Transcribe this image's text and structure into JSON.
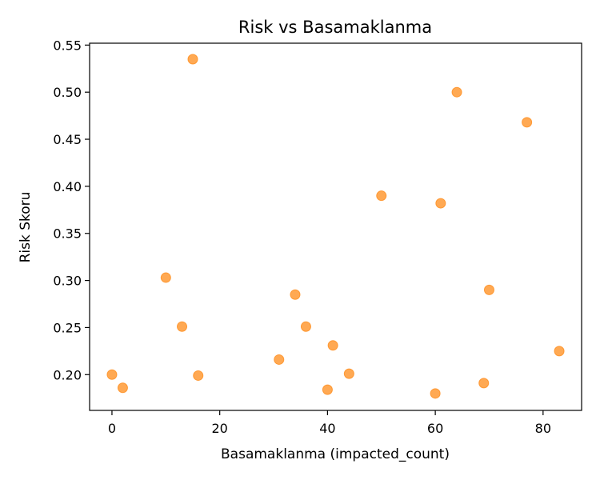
{
  "chart_data": {
    "type": "scatter",
    "title": "Risk vs Basamaklanma",
    "xlabel": "Basamaklanma (impacted_count)",
    "ylabel": "Risk Skoru",
    "xlim": [
      -4.15,
      87.15
    ],
    "ylim": [
      0.162,
      0.552
    ],
    "xticks": [
      0,
      20,
      40,
      60,
      80
    ],
    "yticks": [
      0.2,
      0.25,
      0.3,
      0.35,
      0.4,
      0.45,
      0.5,
      0.55
    ],
    "grid": false,
    "marker_color": "#ff8c1a",
    "points": [
      {
        "x": 0,
        "y": 0.2
      },
      {
        "x": 2,
        "y": 0.186
      },
      {
        "x": 10,
        "y": 0.303
      },
      {
        "x": 13,
        "y": 0.251
      },
      {
        "x": 15,
        "y": 0.535
      },
      {
        "x": 16,
        "y": 0.199
      },
      {
        "x": 31,
        "y": 0.216
      },
      {
        "x": 34,
        "y": 0.285
      },
      {
        "x": 36,
        "y": 0.251
      },
      {
        "x": 40,
        "y": 0.184
      },
      {
        "x": 41,
        "y": 0.231
      },
      {
        "x": 44,
        "y": 0.201
      },
      {
        "x": 50,
        "y": 0.39
      },
      {
        "x": 60,
        "y": 0.18
      },
      {
        "x": 61,
        "y": 0.382
      },
      {
        "x": 64,
        "y": 0.5
      },
      {
        "x": 69,
        "y": 0.191
      },
      {
        "x": 70,
        "y": 0.29
      },
      {
        "x": 77,
        "y": 0.468
      },
      {
        "x": 83,
        "y": 0.225
      }
    ]
  }
}
